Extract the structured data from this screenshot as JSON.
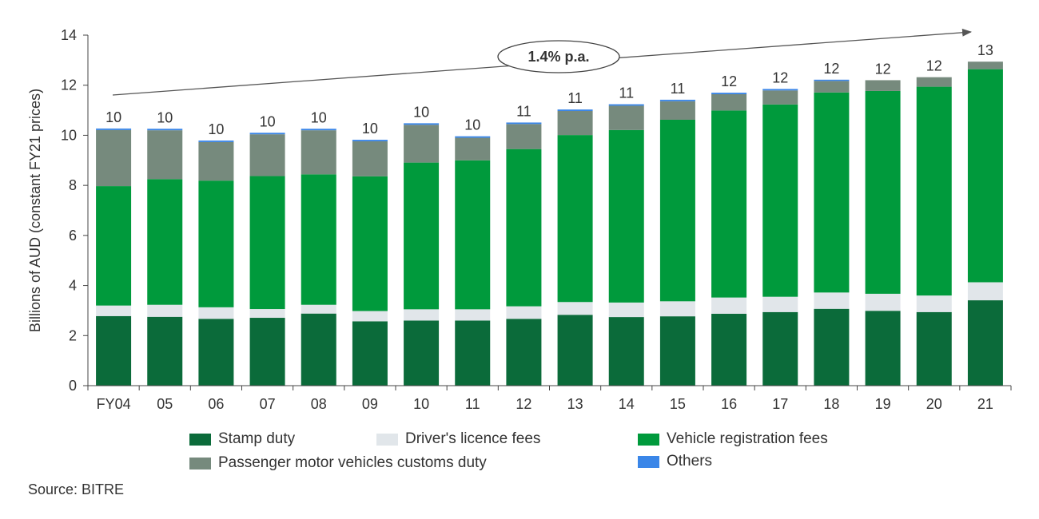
{
  "chart_data": {
    "type": "bar",
    "stacked": true,
    "ylabel": "Billions of AUD (constant FY21 prices)",
    "ylim": [
      0,
      14
    ],
    "yticks": [
      0,
      2,
      4,
      6,
      8,
      10,
      12,
      14
    ],
    "categories": [
      "FY04",
      "05",
      "06",
      "07",
      "08",
      "09",
      "10",
      "11",
      "12",
      "13",
      "14",
      "15",
      "16",
      "17",
      "18",
      "19",
      "20",
      "21"
    ],
    "series": [
      {
        "name": "Stamp duty",
        "color": "#0b6b3a",
        "values": [
          2.78,
          2.75,
          2.67,
          2.71,
          2.88,
          2.57,
          2.6,
          2.6,
          2.67,
          2.83,
          2.74,
          2.77,
          2.87,
          2.94,
          3.07,
          2.99,
          2.94,
          3.41
        ]
      },
      {
        "name": "Driver's licence fees",
        "color": "#e1e6ea",
        "values": [
          0.42,
          0.48,
          0.46,
          0.35,
          0.35,
          0.41,
          0.45,
          0.45,
          0.5,
          0.51,
          0.58,
          0.6,
          0.65,
          0.61,
          0.65,
          0.68,
          0.66,
          0.72
        ]
      },
      {
        "name": "Vehicle registration fees",
        "color": "#009a3c",
        "values": [
          4.77,
          5.02,
          5.06,
          5.31,
          5.21,
          5.38,
          5.86,
          5.95,
          6.28,
          6.67,
          6.89,
          7.25,
          7.47,
          7.68,
          7.99,
          8.1,
          8.34,
          8.51
        ]
      },
      {
        "name": "Passenger motor vehicles customs duty",
        "color": "#768a7d",
        "values": [
          2.24,
          1.95,
          1.54,
          1.67,
          1.76,
          1.4,
          1.51,
          0.9,
          1.0,
          0.96,
          0.97,
          0.74,
          0.65,
          0.56,
          0.46,
          0.43,
          0.38,
          0.3
        ]
      },
      {
        "name": "Others",
        "color": "#3a86e8",
        "values": [
          0.06,
          0.06,
          0.06,
          0.06,
          0.06,
          0.06,
          0.06,
          0.06,
          0.06,
          0.06,
          0.06,
          0.06,
          0.06,
          0.06,
          0.05,
          0.0,
          0.0,
          0.0
        ]
      }
    ],
    "totals": [
      "10",
      "10",
      "10",
      "10",
      "10",
      "10",
      "10",
      "10",
      "11",
      "11",
      "11",
      "11",
      "12",
      "12",
      "12",
      "12",
      "12",
      "13"
    ],
    "annotation": "1.4% p.a.",
    "legend_position": "bottom"
  },
  "source": "Source: BITRE"
}
